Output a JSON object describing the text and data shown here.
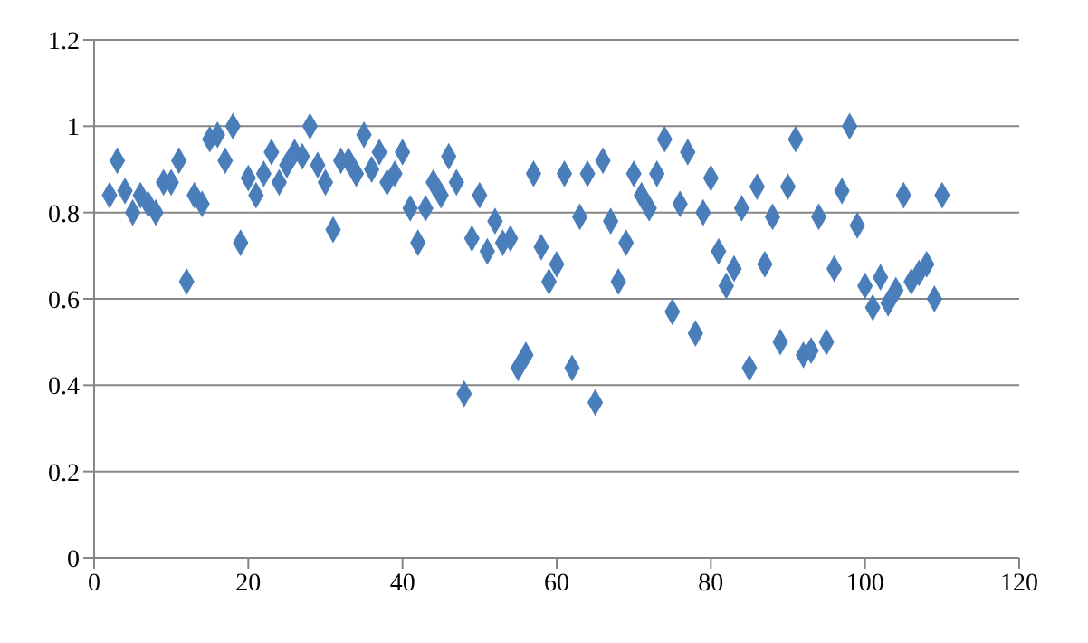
{
  "chart_data": {
    "type": "scatter",
    "marker": "diamond",
    "grid": "y",
    "legend": false,
    "xlim": [
      0,
      120
    ],
    "xticks": [
      0,
      20,
      40,
      60,
      80,
      100,
      120
    ],
    "ylim": [
      0,
      1.2
    ],
    "yticks": [
      0,
      0.2,
      0.4,
      0.6,
      0.8,
      1,
      1.2
    ],
    "series": [
      {
        "color": "#4a7ebb",
        "x": [
          2,
          3,
          4,
          5,
          6,
          7,
          8,
          9,
          10,
          11,
          12,
          13,
          14,
          15,
          16,
          17,
          18,
          19,
          20,
          21,
          22,
          23,
          24,
          25,
          26,
          27,
          28,
          29,
          30,
          31,
          32,
          33,
          34,
          35,
          36,
          37,
          38,
          39,
          40,
          41,
          42,
          43,
          44,
          45,
          46,
          47,
          48,
          49,
          50,
          51,
          52,
          53,
          54,
          55,
          56,
          57,
          58,
          59,
          60,
          61,
          62,
          63,
          64,
          65,
          66,
          67,
          68,
          69,
          70,
          71,
          72,
          73,
          74,
          75,
          76,
          77,
          78,
          79,
          80,
          81,
          82,
          83,
          84,
          85,
          86,
          87,
          88,
          89,
          90,
          91,
          92,
          93,
          94,
          95,
          96,
          97,
          98,
          99,
          100,
          101,
          102,
          103,
          104,
          105,
          106,
          107,
          108,
          109,
          110
        ],
        "values": [
          0.84,
          0.92,
          0.85,
          0.8,
          0.84,
          0.82,
          0.8,
          0.87,
          0.87,
          0.92,
          0.64,
          0.84,
          0.82,
          0.97,
          0.98,
          0.92,
          1.0,
          0.73,
          0.88,
          0.84,
          0.89,
          0.94,
          0.87,
          0.91,
          0.94,
          0.93,
          1.0,
          0.91,
          0.87,
          0.76,
          0.92,
          0.92,
          0.89,
          0.98,
          0.9,
          0.94,
          0.87,
          0.89,
          0.94,
          0.81,
          0.73,
          0.81,
          0.87,
          0.84,
          0.93,
          0.87,
          0.38,
          0.74,
          0.84,
          0.71,
          0.78,
          0.73,
          0.74,
          0.44,
          0.47,
          0.89,
          0.72,
          0.64,
          0.68,
          0.89,
          0.44,
          0.79,
          0.89,
          0.36,
          0.92,
          0.78,
          0.64,
          0.73,
          0.89,
          0.84,
          0.81,
          0.89,
          0.97,
          0.57,
          0.82,
          0.94,
          0.52,
          0.8,
          0.88,
          0.71,
          0.63,
          0.67,
          0.81,
          0.44,
          0.86,
          0.68,
          0.79,
          0.5,
          0.86,
          0.97,
          0.47,
          0.48,
          0.79,
          0.5,
          0.67,
          0.85,
          1.0,
          0.77,
          0.63,
          0.58,
          0.65,
          0.59,
          0.62,
          0.84,
          0.64,
          0.66,
          0.68,
          0.6,
          0.84
        ]
      }
    ]
  }
}
